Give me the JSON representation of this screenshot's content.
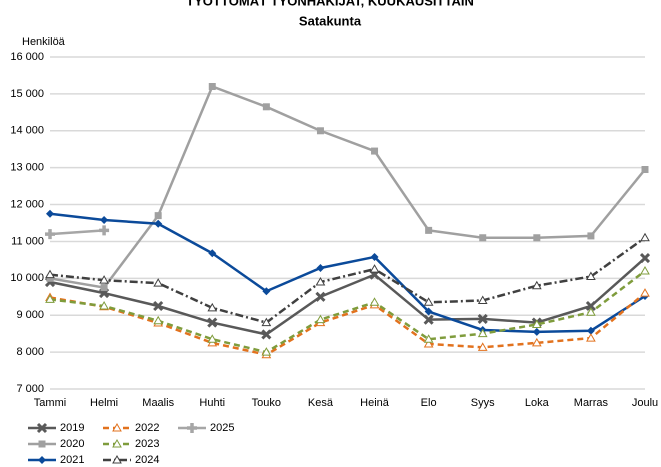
{
  "chart_data": {
    "type": "line",
    "title": "TYÖTTÖMÄT TYÖNHAKIJAT, KUUKAUSITTAIN",
    "subtitle": "Satakunta",
    "y_label": "Henkilöä",
    "categories": [
      "Tammi",
      "Helmi",
      "Maalis",
      "Huhti",
      "Touko",
      "Kesä",
      "Heinä",
      "Elo",
      "Syys",
      "Loka",
      "Marras",
      "Joulu"
    ],
    "ylim": [
      7000,
      16000
    ],
    "yticks": [
      {
        "value": 7000,
        "label": "7 000"
      },
      {
        "value": 8000,
        "label": "8 000"
      },
      {
        "value": 9000,
        "label": "9 000"
      },
      {
        "value": 10000,
        "label": "10 000"
      },
      {
        "value": 11000,
        "label": "11 000"
      },
      {
        "value": 12000,
        "label": "12 000"
      },
      {
        "value": 13000,
        "label": "13 000"
      },
      {
        "value": 14000,
        "label": "14 000"
      },
      {
        "value": 15000,
        "label": "15 000"
      },
      {
        "value": 16000,
        "label": "16 000"
      }
    ],
    "grid": true,
    "legend": "bottom-left",
    "series": [
      {
        "name": "2019",
        "color": "#595959",
        "linestyle": "solid",
        "marker": "x",
        "values": [
          9900,
          9600,
          9250,
          8800,
          8480,
          9500,
          10100,
          8880,
          8900,
          8800,
          9250,
          10550
        ]
      },
      {
        "name": "2020",
        "color": "#a0a0a0",
        "linestyle": "solid",
        "marker": "square",
        "values": [
          10000,
          9750,
          11700,
          15200,
          14650,
          14000,
          13450,
          11300,
          11100,
          11100,
          11150,
          12950
        ]
      },
      {
        "name": "2021",
        "color": "#0b4a9a",
        "linestyle": "solid",
        "marker": "diamond",
        "values": [
          11750,
          11580,
          11480,
          10680,
          9650,
          10280,
          10580,
          9100,
          8600,
          8550,
          8580,
          9520
        ]
      },
      {
        "name": "2022",
        "color": "#e2721e",
        "linestyle": "dashed",
        "marker": "triangle",
        "values": [
          9480,
          9230,
          8790,
          8250,
          7930,
          8800,
          9280,
          8220,
          8130,
          8250,
          8380,
          9600
        ]
      },
      {
        "name": "2023",
        "color": "#7f9c3c",
        "linestyle": "dashed",
        "marker": "triangle",
        "values": [
          9430,
          9250,
          8850,
          8350,
          8000,
          8880,
          9350,
          8350,
          8500,
          8750,
          9080,
          10200
        ]
      },
      {
        "name": "2024",
        "color": "#404040",
        "linestyle": "dashdot",
        "marker": "triangle",
        "values": [
          10100,
          9950,
          9870,
          9200,
          8800,
          9900,
          10250,
          9350,
          9400,
          9800,
          10050,
          11100
        ]
      },
      {
        "name": "2025",
        "color": "#a6a6a6",
        "linestyle": "solid",
        "marker": "plus",
        "values": [
          11200,
          11300,
          null,
          null,
          null,
          null,
          null,
          null,
          null,
          null,
          null,
          null
        ]
      }
    ]
  }
}
